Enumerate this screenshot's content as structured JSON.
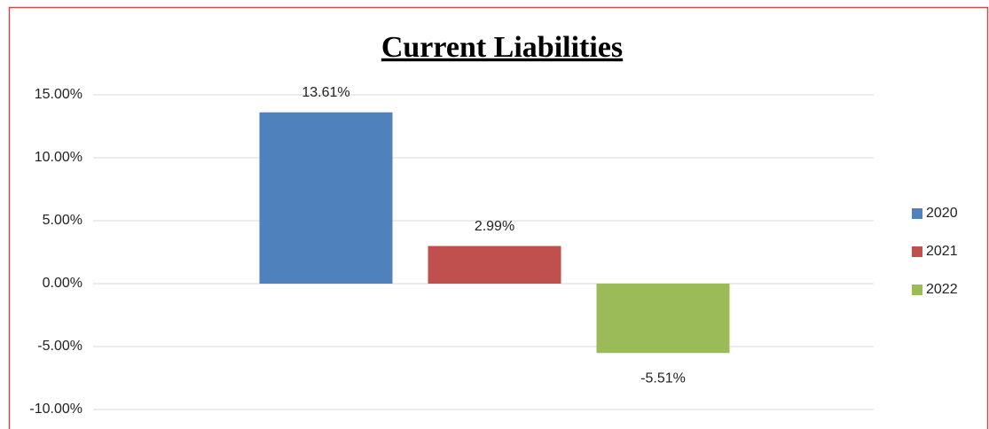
{
  "chart_data": {
    "type": "bar",
    "title": "Current Liabilities",
    "categories": [
      null
    ],
    "series": [
      {
        "name": "2020",
        "color": "#4f81bd",
        "values": [
          13.61
        ],
        "value_labels": [
          "13.61%"
        ]
      },
      {
        "name": "2021",
        "color": "#c0504d",
        "values": [
          2.99
        ],
        "value_labels": [
          "2.99%"
        ]
      },
      {
        "name": "2022",
        "color": "#9bbb59",
        "values": [
          -5.51
        ],
        "value_labels": [
          "-5.51%"
        ]
      }
    ],
    "ylim": [
      -10,
      15
    ],
    "yticks": [
      {
        "value": -10,
        "label": "-10.00%"
      },
      {
        "value": -5,
        "label": "-5.00%"
      },
      {
        "value": 0,
        "label": "0.00%"
      },
      {
        "value": 5,
        "label": "5.00%"
      },
      {
        "value": 10,
        "label": "10.00%"
      },
      {
        "value": 15,
        "label": "15.00%"
      }
    ],
    "grid": true,
    "legend": "right"
  }
}
